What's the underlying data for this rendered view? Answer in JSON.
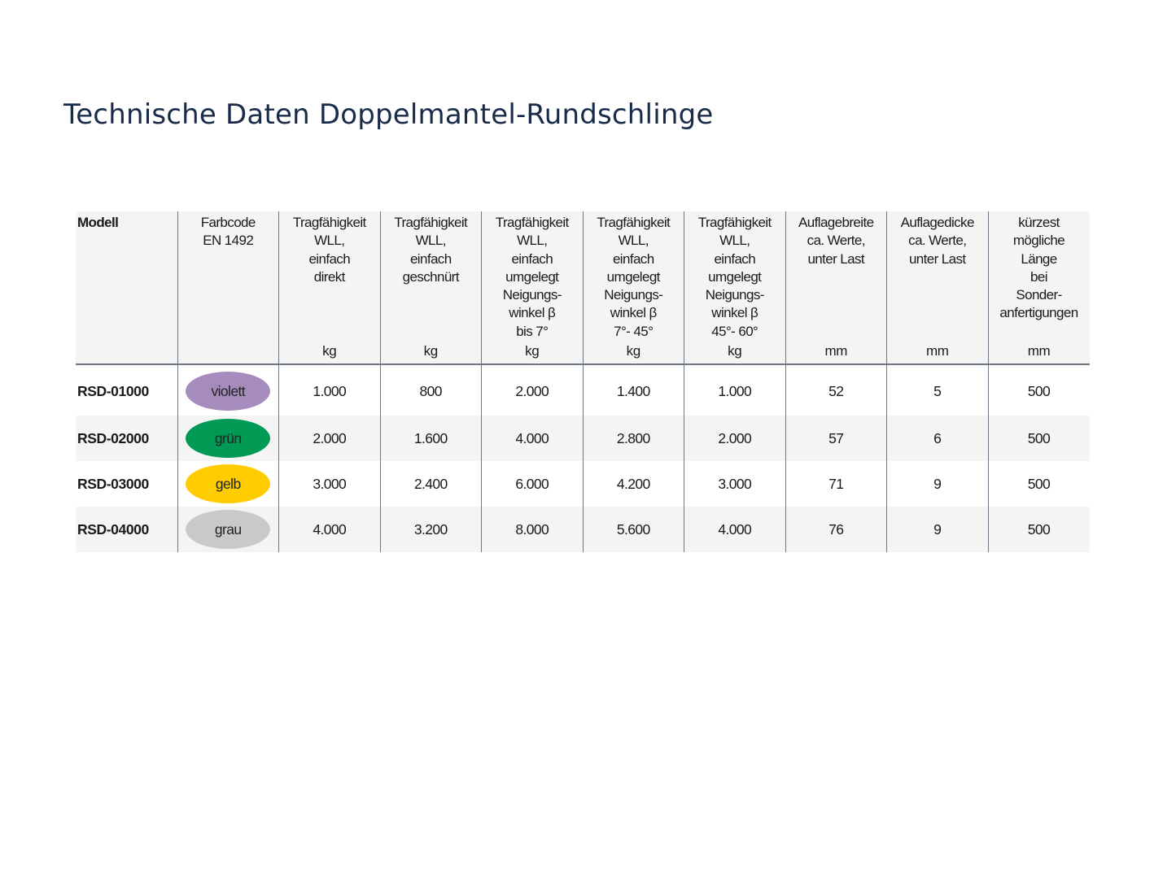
{
  "page": {
    "title": "Technische Daten Doppelmantel-Rundschlinge"
  },
  "table": {
    "headers": [
      {
        "lines": [
          "Modell"
        ],
        "unit": ""
      },
      {
        "lines": [
          "Farbcode",
          "EN 1492"
        ],
        "unit": ""
      },
      {
        "lines": [
          "Tragfähigkeit",
          "WLL,",
          "einfach",
          "direkt"
        ],
        "unit": "kg"
      },
      {
        "lines": [
          "Tragfähigkeit",
          "WLL,",
          "einfach",
          "geschnürt"
        ],
        "unit": "kg"
      },
      {
        "lines": [
          "Tragfähigkeit",
          "WLL,",
          "einfach",
          "umgelegt",
          "Neigungs-",
          "winkel β",
          "bis 7°"
        ],
        "unit": "kg"
      },
      {
        "lines": [
          "Tragfähigkeit",
          "WLL,",
          "einfach",
          "umgelegt",
          "Neigungs-",
          "winkel β",
          "7°- 45°"
        ],
        "unit": "kg"
      },
      {
        "lines": [
          "Tragfähigkeit",
          "WLL,",
          "einfach",
          "umgelegt",
          "Neigungs-",
          "winkel β",
          "45°- 60°"
        ],
        "unit": "kg"
      },
      {
        "lines": [
          "Auflagebreite",
          "ca. Werte,",
          "unter Last"
        ],
        "unit": "mm"
      },
      {
        "lines": [
          "Auflagedicke",
          "ca. Werte,",
          "unter Last"
        ],
        "unit": "mm"
      },
      {
        "lines": [
          "kürzest",
          "mögliche",
          "Länge",
          "bei",
          "Sonder-",
          "anfertigungen"
        ],
        "unit": "mm"
      }
    ],
    "rows": [
      {
        "model": "RSD-01000",
        "color_label": "violett",
        "color_hex": "#a68bbd",
        "direkt": "1.000",
        "geschnuert": "800",
        "bis7": "2.000",
        "w7_45": "1.400",
        "w45_60": "1.000",
        "breite": "52",
        "dicke": "5",
        "laenge": "500"
      },
      {
        "model": "RSD-02000",
        "color_label": "grün",
        "color_hex": "#009a55",
        "direkt": "2.000",
        "geschnuert": "1.600",
        "bis7": "4.000",
        "w7_45": "2.800",
        "w45_60": "2.000",
        "breite": "57",
        "dicke": "6",
        "laenge": "500"
      },
      {
        "model": "RSD-03000",
        "color_label": "gelb",
        "color_hex": "#ffcc00",
        "direkt": "3.000",
        "geschnuert": "2.400",
        "bis7": "6.000",
        "w7_45": "4.200",
        "w45_60": "3.000",
        "breite": "71",
        "dicke": "9",
        "laenge": "500"
      },
      {
        "model": "RSD-04000",
        "color_label": "grau",
        "color_hex": "#c8c9cb",
        "direkt": "4.000",
        "geschnuert": "3.200",
        "bis7": "8.000",
        "w7_45": "5.600",
        "w45_60": "4.000",
        "breite": "76",
        "dicke": "9",
        "laenge": "500"
      }
    ]
  }
}
